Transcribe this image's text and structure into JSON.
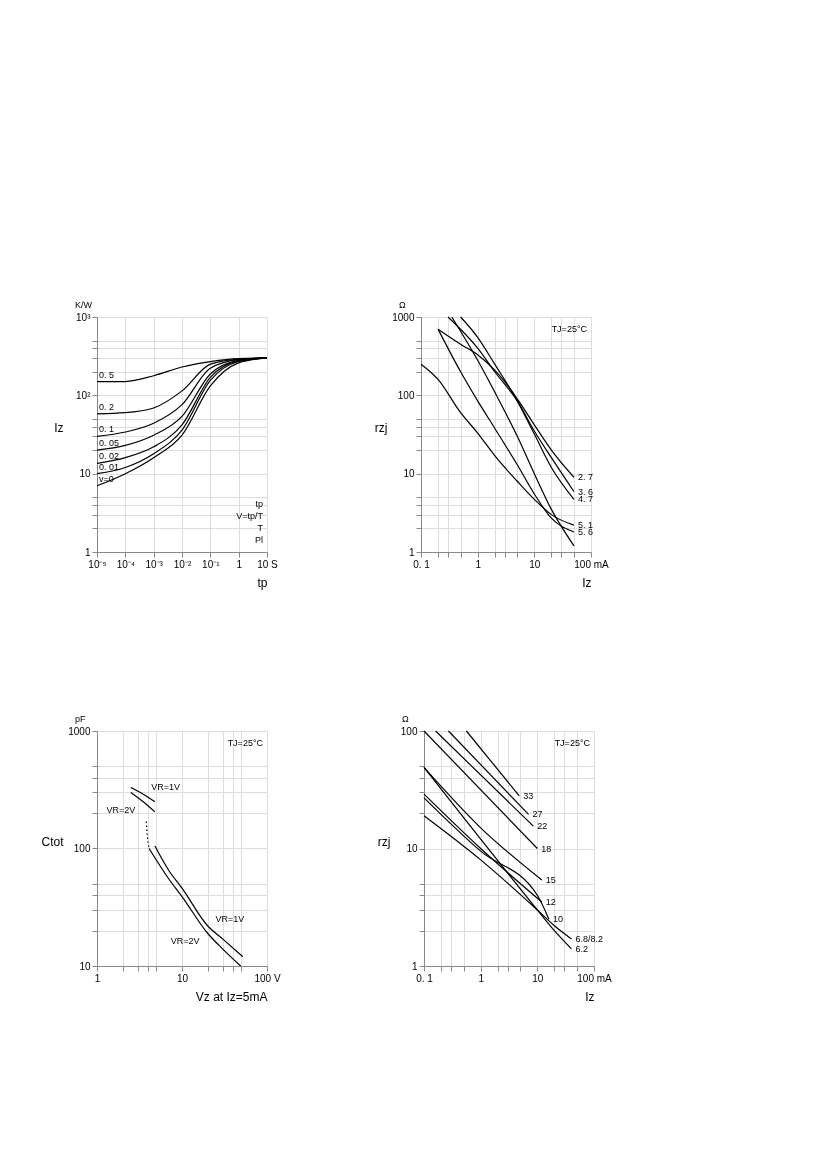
{
  "chart_data": [
    {
      "type": "line",
      "xlabel": "tp",
      "ylabel": "Iz",
      "log": "xy",
      "grid": true,
      "annotations": [
        "K/W",
        "tp",
        "V=tp/T",
        "T",
        "Pl"
      ],
      "xlim": [
        1e-05,
        10
      ],
      "ylim": [
        1,
        1000
      ],
      "xticks": [
        {
          "value": 1e-05,
          "label": "10⁻⁵"
        },
        {
          "value": 0.0001,
          "label": "10⁻⁴"
        },
        {
          "value": 0.001,
          "label": "10⁻³"
        },
        {
          "value": 0.01,
          "label": "10⁻²"
        },
        {
          "value": 0.1,
          "label": "10⁻¹"
        },
        1,
        {
          "value": 10,
          "label": "10 S"
        }
      ],
      "yticks": [
        1,
        {
          "value": 2,
          "label": null
        },
        {
          "value": 3,
          "label": null
        },
        {
          "value": 4,
          "label": null
        },
        {
          "value": 5,
          "label": null
        },
        10,
        {
          "value": 20,
          "label": null
        },
        {
          "value": 30,
          "label": null
        },
        {
          "value": 40,
          "label": null
        },
        {
          "value": 50,
          "label": null
        },
        {
          "value": 100,
          "label": "10²"
        },
        {
          "value": 200,
          "label": null
        },
        {
          "value": 300,
          "label": null
        },
        {
          "value": 400,
          "label": null
        },
        {
          "value": 500,
          "label": null
        },
        {
          "value": 1000,
          "label": "10³"
        }
      ],
      "x": [
        1e-05,
        0.0001,
        0.001,
        0.01,
        0.1,
        1,
        10
      ],
      "series": [
        {
          "name": "0. 5",
          "color": "#000000",
          "values": [
            150,
            150,
            178,
            230,
            270,
            295,
            300
          ]
        },
        {
          "name": "0. 2",
          "color": "#000000",
          "values": [
            58,
            60,
            69,
            114,
            250,
            290,
            300
          ]
        },
        {
          "name": "0. 1",
          "color": "#000000",
          "values": [
            30,
            34,
            44,
            76,
            222,
            285,
            300
          ]
        },
        {
          "name": "0. 05",
          "color": "#000000",
          "values": [
            20,
            23,
            31,
            54,
            187,
            280,
            300
          ]
        },
        {
          "name": "0. 02",
          "color": "#000000",
          "values": [
            13.5,
            16,
            22,
            42,
            170,
            275,
            300
          ]
        },
        {
          "name": "0. 01",
          "color": "#000000",
          "values": [
            10,
            12,
            18,
            36,
            155,
            270,
            300
          ]
        },
        {
          "name": "v=0",
          "color": "#000000",
          "values": [
            7,
            10,
            16,
            31,
            132,
            260,
            300
          ]
        }
      ]
    },
    {
      "type": "line",
      "xlabel": "Iz",
      "ylabel": "rzj",
      "log": "xy",
      "grid": true,
      "annotations": [
        "Ω",
        "TJ=25°C"
      ],
      "xlim": [
        0.1,
        100
      ],
      "ylim": [
        1,
        1000
      ],
      "xticks": [
        {
          "value": 0.1,
          "label": "0. 1"
        },
        {
          "value": 0.2,
          "label": null
        },
        {
          "value": 0.3,
          "label": null
        },
        {
          "value": 0.5,
          "label": null
        },
        1,
        {
          "value": 2,
          "label": null
        },
        {
          "value": 3,
          "label": null
        },
        {
          "value": 5,
          "label": null
        },
        10,
        {
          "value": 20,
          "label": null
        },
        {
          "value": 30,
          "label": null
        },
        {
          "value": 50,
          "label": null
        },
        {
          "value": 100,
          "label": "100 mA"
        }
      ],
      "yticks": [
        1,
        {
          "value": 2,
          "label": null
        },
        {
          "value": 3,
          "label": null
        },
        {
          "value": 4,
          "label": null
        },
        {
          "value": 5,
          "label": null
        },
        10,
        {
          "value": 20,
          "label": null
        },
        {
          "value": 30,
          "label": null
        },
        {
          "value": 40,
          "label": null
        },
        {
          "value": 50,
          "label": null
        },
        100,
        {
          "value": 200,
          "label": null
        },
        {
          "value": 300,
          "label": null
        },
        {
          "value": 400,
          "label": null
        },
        {
          "value": 500,
          "label": null
        },
        1000
      ],
      "series": [
        {
          "name": "2. 7",
          "color": "#000000",
          "x": [
            0.2,
            0.5,
            1,
            2,
            3,
            5,
            10,
            20,
            50
          ],
          "values": [
            700,
            450,
            330,
            210,
            150,
            90,
            42,
            20,
            9
          ]
        },
        {
          "name": "3. 6",
          "color": "#000000",
          "x": [
            0.3,
            1,
            2,
            5,
            10,
            20,
            50
          ],
          "values": [
            1000,
            400,
            200,
            85,
            35,
            16,
            5.9
          ]
        },
        {
          "name": "4. 7",
          "color": "#000000",
          "x": [
            0.5,
            1,
            2,
            5,
            10,
            20,
            50
          ],
          "values": [
            1000,
            550,
            250,
            85,
            32,
            12,
            4.7
          ]
        },
        {
          "name": "5. 1",
          "color": "#000000",
          "x": [
            0.1,
            0.2,
            0.5,
            1,
            2,
            5,
            10,
            20,
            50
          ],
          "values": [
            250,
            160,
            60,
            33,
            17,
            8,
            4.7,
            3,
            2.2
          ]
        },
        {
          "name": "5. 6",
          "color": "#000000",
          "x": [
            0.2,
            0.5,
            1,
            2,
            5,
            10,
            20,
            50
          ],
          "values": [
            700,
            200,
            85,
            38,
            13,
            5.5,
            2.7,
            1.8
          ]
        },
        {
          "color": "#000000",
          "x": [
            0.35,
            1,
            2,
            5,
            10,
            20,
            50
          ],
          "values": [
            1000,
            280,
            110,
            30,
            10,
            3.5,
            1.2
          ]
        }
      ]
    },
    {
      "type": "line",
      "xlabel": "Vz at Iz=5mA",
      "ylabel": "Ctot",
      "log": "xy",
      "grid": true,
      "annotations": [
        "pF",
        "TJ=25°C"
      ],
      "xlim": [
        1,
        100
      ],
      "ylim": [
        10,
        1000
      ],
      "xticks": [
        1,
        {
          "value": 2,
          "label": null
        },
        {
          "value": 3,
          "label": null
        },
        {
          "value": 4,
          "label": null
        },
        {
          "value": 5,
          "label": null
        },
        10,
        {
          "value": 20,
          "label": null
        },
        {
          "value": 30,
          "label": null
        },
        {
          "value": 40,
          "label": null
        },
        {
          "value": 50,
          "label": null
        },
        {
          "value": 100,
          "label": "100 V"
        }
      ],
      "yticks": [
        10,
        {
          "value": 20,
          "label": null
        },
        {
          "value": 30,
          "label": null
        },
        {
          "value": 40,
          "label": null
        },
        {
          "value": 50,
          "label": null
        },
        100,
        {
          "value": 200,
          "label": null
        },
        {
          "value": 300,
          "label": null
        },
        {
          "value": 400,
          "label": null
        },
        {
          "value": 500,
          "label": null
        },
        1000
      ],
      "series": [
        {
          "name": "VR=1V",
          "color": "#000000",
          "x": [
            2.5,
            3.5,
            4.8
          ],
          "values": [
            330,
            290,
            250
          ]
        },
        {
          "name": "VR=2V",
          "color": "#000000",
          "x": [
            2.5,
            3.5,
            4.8
          ],
          "values": [
            300,
            250,
            205
          ]
        },
        {
          "name": "VR=1V",
          "color": "#000000",
          "x": [
            4.8,
            7,
            10,
            20,
            30,
            52
          ],
          "values": [
            105,
            65,
            46,
            22,
            17,
            12
          ]
        },
        {
          "name": "VR=2V",
          "color": "#000000",
          "x": [
            4.1,
            7,
            10,
            20,
            30,
            49
          ],
          "values": [
            100,
            55,
            39,
            19,
            14,
            10
          ]
        },
        {
          "color": "#000000",
          "line_style": "dotted",
          "x": [
            3.8,
            3.9,
            4.1
          ],
          "values": [
            170,
            130,
            100
          ]
        }
      ]
    },
    {
      "type": "line",
      "xlabel": "Iz",
      "ylabel": "rzj",
      "log": "xy",
      "grid": true,
      "annotations": [
        "Ω",
        "TJ=25°C"
      ],
      "xlim": [
        0.1,
        100
      ],
      "ylim": [
        1,
        100
      ],
      "xticks": [
        {
          "value": 0.1,
          "label": "0. 1"
        },
        {
          "value": 0.2,
          "label": null
        },
        {
          "value": 0.3,
          "label": null
        },
        {
          "value": 0.5,
          "label": null
        },
        1,
        {
          "value": 2,
          "label": null
        },
        {
          "value": 3,
          "label": null
        },
        {
          "value": 5,
          "label": null
        },
        10,
        {
          "value": 20,
          "label": null
        },
        {
          "value": 30,
          "label": null
        },
        {
          "value": 50,
          "label": null
        },
        {
          "value": 100,
          "label": "100 mA"
        }
      ],
      "yticks": [
        1,
        {
          "value": 2,
          "label": null
        },
        {
          "value": 3,
          "label": null
        },
        {
          "value": 4,
          "label": null
        },
        {
          "value": 5,
          "label": null
        },
        10,
        {
          "value": 20,
          "label": null
        },
        {
          "value": 30,
          "label": null
        },
        {
          "value": 40,
          "label": null
        },
        {
          "value": 50,
          "label": null
        },
        100
      ],
      "series": [
        {
          "name": "33",
          "color": "#000000",
          "x": [
            0.56,
            4.8
          ],
          "values": [
            100,
            28
          ]
        },
        {
          "name": "27",
          "color": "#000000",
          "x": [
            0.27,
            7
          ],
          "values": [
            100,
            19.5
          ]
        },
        {
          "name": "22",
          "color": "#000000",
          "x": [
            0.16,
            8.5
          ],
          "values": [
            100,
            15.5
          ]
        },
        {
          "name": "18",
          "color": "#000000",
          "x": [
            0.1,
            10
          ],
          "values": [
            100,
            10
          ]
        },
        {
          "name": "15",
          "color": "#000000",
          "x": [
            0.1,
            1,
            12
          ],
          "values": [
            49,
            15,
            5.4
          ]
        },
        {
          "name": "12",
          "color": "#000000",
          "x": [
            0.1,
            1,
            12
          ],
          "values": [
            29,
            10,
            3.5
          ]
        },
        {
          "name": "10",
          "color": "#000000",
          "x": [
            0.1,
            1,
            10,
            16
          ],
          "values": [
            27,
            9.5,
            4,
            2.5
          ]
        },
        {
          "name": "6.8/8.2",
          "color": "#000000",
          "x": [
            0.1,
            1,
            10,
            20,
            40
          ],
          "values": [
            19,
            8,
            3,
            2.2,
            1.7
          ]
        },
        {
          "name": "6.2",
          "color": "#000000",
          "x": [
            0.1,
            1,
            10,
            20,
            40
          ],
          "values": [
            49,
            12,
            3,
            2,
            1.4
          ]
        }
      ]
    }
  ]
}
